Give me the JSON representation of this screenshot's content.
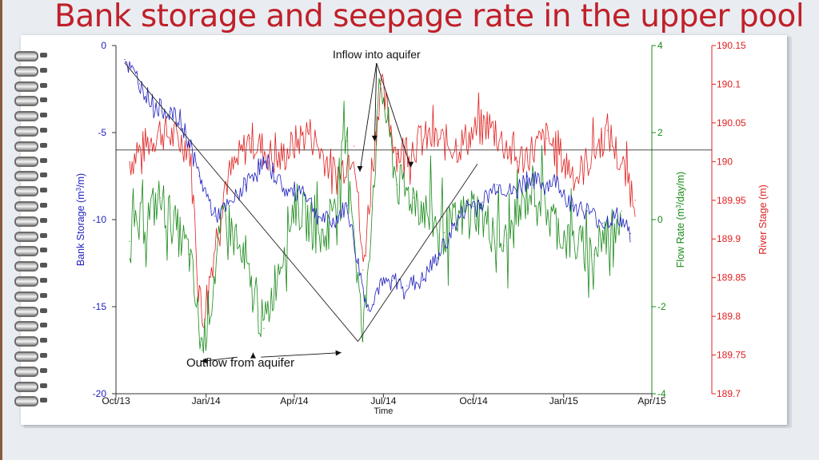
{
  "slide": {
    "title": "Bank storage and seepage rate in the upper pool"
  },
  "chart_data": {
    "type": "line",
    "title": "Bank storage and seepage rate in the upper pool",
    "xlabel": "Time",
    "x_ticks": [
      "Oct/13",
      "Jan/14",
      "Apr/14",
      "Jul/14",
      "Oct/14",
      "Jan/15",
      "Apr/15"
    ],
    "x_range": [
      "2013-10-01",
      "2015-04-01"
    ],
    "axes": {
      "left": {
        "label": "Bank Storage (m3/m)",
        "label_main": "Bank Storage (m",
        "label_sup": "3",
        "label_tail": "/m)",
        "range": [
          -20,
          0
        ],
        "ticks": [
          "0",
          "-5",
          "-10",
          "-15",
          "-20"
        ],
        "color": "#1f1fbf"
      },
      "right1": {
        "label": "Flow Rate (m3/day/m)",
        "label_main": "Flow Rate (m",
        "label_sup": "3",
        "label_tail": "/day/m)",
        "range": [
          -4,
          4
        ],
        "ticks": [
          "4",
          "2",
          "0",
          "-2",
          "-4"
        ],
        "color": "#1a8a1a"
      },
      "right2": {
        "label": "River Stage (m)",
        "range": [
          189.7,
          190.15
        ],
        "ticks": [
          "190.15",
          "190.1",
          "190.05",
          "190",
          "189.95",
          "189.9",
          "189.85",
          "189.8",
          "189.75",
          "189.7"
        ],
        "color": "#e02020"
      }
    },
    "reference_line": {
      "axis": "left",
      "value": -6
    },
    "series": [
      {
        "name": "Bank Storage",
        "axis": "left",
        "color": "#1f1fbf",
        "x": [
          "2013-10-10",
          "2013-10-25",
          "2013-11-10",
          "2013-11-25",
          "2013-12-10",
          "2013-12-25",
          "2014-01-10",
          "2014-01-25",
          "2014-02-10",
          "2014-02-25",
          "2014-03-10",
          "2014-03-25",
          "2014-04-10",
          "2014-04-25",
          "2014-05-10",
          "2014-05-25",
          "2014-06-05",
          "2014-06-15",
          "2014-06-25",
          "2014-07-10",
          "2014-07-25",
          "2014-08-10",
          "2014-08-25",
          "2014-09-10",
          "2014-09-25",
          "2014-10-10",
          "2014-10-25",
          "2014-11-10",
          "2014-11-25",
          "2014-12-10",
          "2014-12-25",
          "2015-01-10",
          "2015-01-25",
          "2015-02-10",
          "2015-02-25",
          "2015-03-10"
        ],
        "values": [
          -0.8,
          -2.2,
          -3.5,
          -3.8,
          -4.8,
          -7.5,
          -9.8,
          -9.2,
          -8.0,
          -6.8,
          -7.2,
          -8.5,
          -8.2,
          -9.8,
          -10.2,
          -9.2,
          -12.5,
          -15.2,
          -14.0,
          -13.5,
          -13.8,
          -13.5,
          -12.2,
          -10.5,
          -9.2,
          -9.0,
          -8.0,
          -8.5,
          -7.5,
          -8.0,
          -7.8,
          -9.2,
          -9.5,
          -10.2,
          -9.8,
          -10.8
        ]
      },
      {
        "name": "Flow Rate",
        "axis": "right1",
        "color": "#1a8a1a",
        "x": [
          "2013-10-15",
          "2013-11-15",
          "2013-12-15",
          "2013-12-28",
          "2014-01-20",
          "2014-02-15",
          "2014-03-01",
          "2014-04-01",
          "2014-05-01",
          "2014-05-25",
          "2014-06-10",
          "2014-06-28",
          "2014-07-15",
          "2014-08-01",
          "2014-09-01",
          "2014-10-01",
          "2014-11-01",
          "2014-12-01",
          "2015-01-01",
          "2015-02-01",
          "2015-03-01"
        ],
        "values": [
          -0.5,
          0.5,
          -0.8,
          -3.0,
          0.2,
          -1.5,
          -2.5,
          0.4,
          -0.5,
          1.8,
          -2.8,
          3.2,
          0.8,
          0.5,
          -0.3,
          0.3,
          -0.6,
          0.8,
          -0.4,
          -0.8,
          0.2
        ]
      },
      {
        "name": "River Stage",
        "axis": "right2",
        "color": "#e02020",
        "x": [
          "2013-10-15",
          "2013-11-15",
          "2013-12-15",
          "2013-12-28",
          "2014-01-20",
          "2014-02-15",
          "2014-03-15",
          "2014-04-15",
          "2014-05-15",
          "2014-06-01",
          "2014-06-10",
          "2014-06-28",
          "2014-07-15",
          "2014-08-15",
          "2014-09-15",
          "2014-10-15",
          "2014-11-15",
          "2014-12-15",
          "2015-01-15",
          "2015-02-15",
          "2015-03-15"
        ],
        "values": [
          190.0,
          190.04,
          190.02,
          189.79,
          189.97,
          190.03,
          190.0,
          190.04,
          189.98,
          190.02,
          189.86,
          190.1,
          190.01,
          190.03,
          190.02,
          190.05,
          190.0,
          190.03,
          189.98,
          190.04,
          189.95
        ]
      }
    ],
    "annotations": [
      {
        "text": "Inflow into aquifer",
        "points": [
          [
            "2014-06-07",
            1.1
          ],
          [
            "2014-06-22",
            1.8
          ],
          [
            "2014-07-29",
            1.2
          ]
        ],
        "text_at": [
          "2014-06-24",
          -0.55
        ]
      },
      {
        "text": "Outflow from aquifer",
        "points": [
          [
            "2013-12-27",
            -3.0
          ],
          [
            "2014-02-18",
            -2.8
          ],
          [
            "2014-05-19",
            -2.8
          ]
        ],
        "text_at": [
          "2014-02-05",
          -18.2
        ]
      }
    ]
  }
}
